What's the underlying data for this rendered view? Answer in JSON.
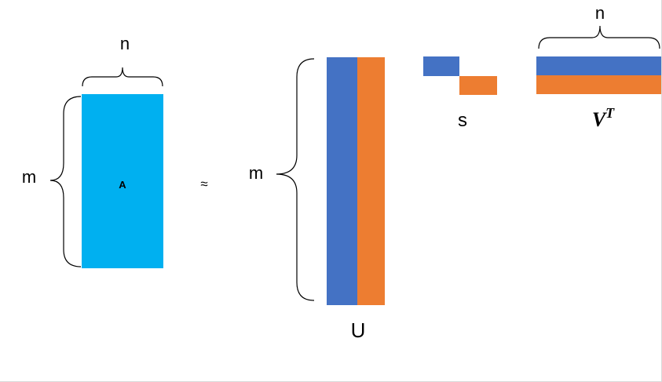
{
  "matrix_a": {
    "label": "A",
    "rows_label": "m",
    "cols_label": "n",
    "color": "#00b0f0"
  },
  "approx_symbol": "≈",
  "matrix_u": {
    "label": "U",
    "rows_label": "m",
    "colors": [
      "#4472c4",
      "#ed7d31"
    ]
  },
  "matrix_s": {
    "label": "s",
    "colors": [
      "#4472c4",
      "#ed7d31"
    ]
  },
  "matrix_vt": {
    "label_base": "V",
    "label_sup": "T",
    "cols_label": "n",
    "colors": [
      "#4472c4",
      "#ed7d31"
    ]
  }
}
